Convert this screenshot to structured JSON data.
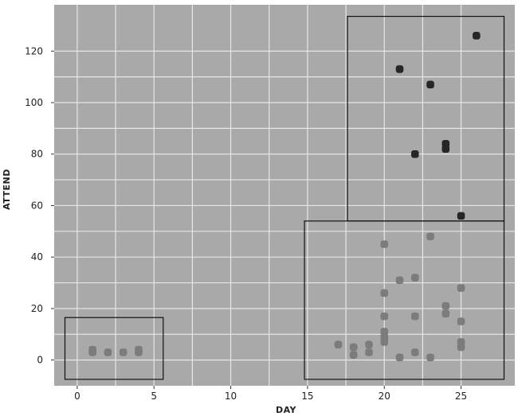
{
  "chart_data": {
    "type": "scatter",
    "title": "",
    "xlabel": "DAY",
    "ylabel": "ATTEND",
    "xlim": [
      -1.5,
      28.5
    ],
    "ylim": [
      -10,
      138
    ],
    "xticks": [
      0,
      5,
      10,
      15,
      20,
      25
    ],
    "yticks": [
      0,
      20,
      40,
      60,
      80,
      100,
      120
    ],
    "grid": true,
    "colors": {
      "panel": "#a9a9a9",
      "grid": "#e6e6e6",
      "light_points": "#7c7c7c",
      "dark_points": "#262626",
      "box": "#111111"
    },
    "series": [
      {
        "points": [
          [
            1,
            3
          ],
          [
            1,
            4
          ],
          [
            2,
            3
          ],
          [
            3,
            3
          ],
          [
            4,
            3
          ],
          [
            4,
            4
          ],
          [
            17,
            6
          ],
          [
            18,
            2
          ],
          [
            18,
            5
          ],
          [
            19,
            3
          ],
          [
            19,
            6
          ],
          [
            20,
            7
          ],
          [
            20,
            9
          ],
          [
            20,
            11
          ],
          [
            20,
            17
          ],
          [
            20,
            26
          ],
          [
            20,
            45
          ],
          [
            21,
            1
          ],
          [
            21,
            31
          ],
          [
            22,
            3
          ],
          [
            22,
            17
          ],
          [
            22,
            32
          ],
          [
            23,
            1
          ],
          [
            23,
            48
          ],
          [
            24,
            18
          ],
          [
            24,
            21
          ],
          [
            25,
            5
          ],
          [
            25,
            7
          ],
          [
            25,
            15
          ],
          [
            25,
            28
          ]
        ]
      },
      {
        "points": [
          [
            21,
            113
          ],
          [
            22,
            80
          ],
          [
            23,
            107
          ],
          [
            24,
            82
          ],
          [
            24,
            84
          ],
          [
            25,
            56
          ],
          [
            26,
            126
          ]
        ]
      }
    ],
    "annotations": [
      {
        "type": "rectangle",
        "x": [
          -0.8,
          5.6
        ],
        "y": [
          -7.5,
          16.5
        ]
      },
      {
        "type": "rectangle",
        "x": [
          14.8,
          27.8
        ],
        "y": [
          -7.5,
          54
        ]
      },
      {
        "type": "rectangle",
        "x": [
          17.6,
          27.8
        ],
        "y": [
          54,
          133.5
        ]
      }
    ]
  }
}
